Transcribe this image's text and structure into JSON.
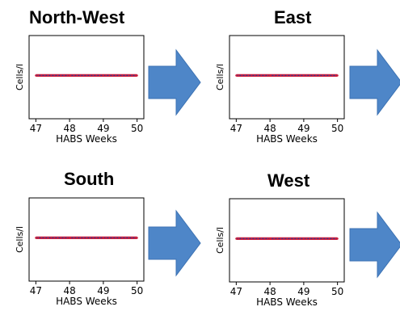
{
  "colors": {
    "series_line": "#cc1f3c",
    "series_dash": "#2a3f9e",
    "arrow_fill": "#4e86c8",
    "arrow_stroke": "#3c72b3",
    "frame": "#000000"
  },
  "chart_data": [
    {
      "type": "line",
      "title": "North-West",
      "xlabel": "HABS Weeks",
      "ylabel": "Cells/l",
      "x_ticks": [
        "47",
        "48",
        "49",
        "50"
      ],
      "xlim": [
        46.8,
        50.2
      ],
      "series": [
        {
          "x": [
            47,
            48,
            49,
            50
          ],
          "values": [
            0,
            0,
            0,
            0
          ]
        }
      ],
      "grid": false
    },
    {
      "type": "line",
      "title": "East",
      "xlabel": "HABS Weeks",
      "ylabel": "Cells/l",
      "x_ticks": [
        "47",
        "48",
        "49",
        "50"
      ],
      "xlim": [
        46.8,
        50.2
      ],
      "series": [
        {
          "x": [
            47,
            48,
            49,
            50
          ],
          "values": [
            0,
            0,
            0,
            0
          ]
        }
      ],
      "grid": false
    },
    {
      "type": "line",
      "title": "South",
      "xlabel": "HABS Weeks",
      "ylabel": "Cells/l",
      "x_ticks": [
        "47",
        "48",
        "49",
        "50"
      ],
      "xlim": [
        46.8,
        50.2
      ],
      "series": [
        {
          "x": [
            47,
            48,
            49,
            50
          ],
          "values": [
            0,
            0,
            0,
            0
          ]
        }
      ],
      "grid": false
    },
    {
      "type": "line",
      "title": "West",
      "xlabel": "HABS Weeks",
      "ylabel": "Cells/l",
      "x_ticks": [
        "47",
        "48",
        "49",
        "50"
      ],
      "xlim": [
        46.8,
        50.2
      ],
      "series": [
        {
          "x": [
            47,
            48,
            49,
            50
          ],
          "values": [
            0,
            0,
            0,
            0
          ]
        }
      ],
      "grid": false
    }
  ]
}
